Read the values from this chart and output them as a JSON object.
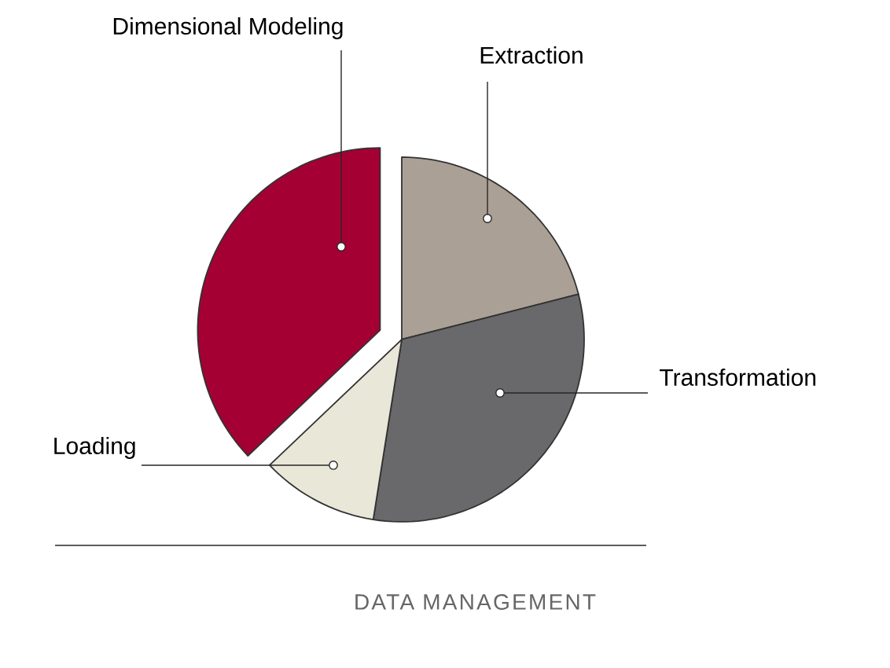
{
  "chart_data": {
    "type": "pie",
    "title": "DATA MANAGEMENT",
    "categories": [
      "Extraction",
      "Transformation",
      "Loading",
      "Dimensional Modeling"
    ],
    "values": [
      21,
      31.5,
      10.4,
      37.1
    ],
    "colors": [
      "#aba095",
      "#69696b",
      "#e9e7d8",
      "#a50034"
    ]
  }
}
